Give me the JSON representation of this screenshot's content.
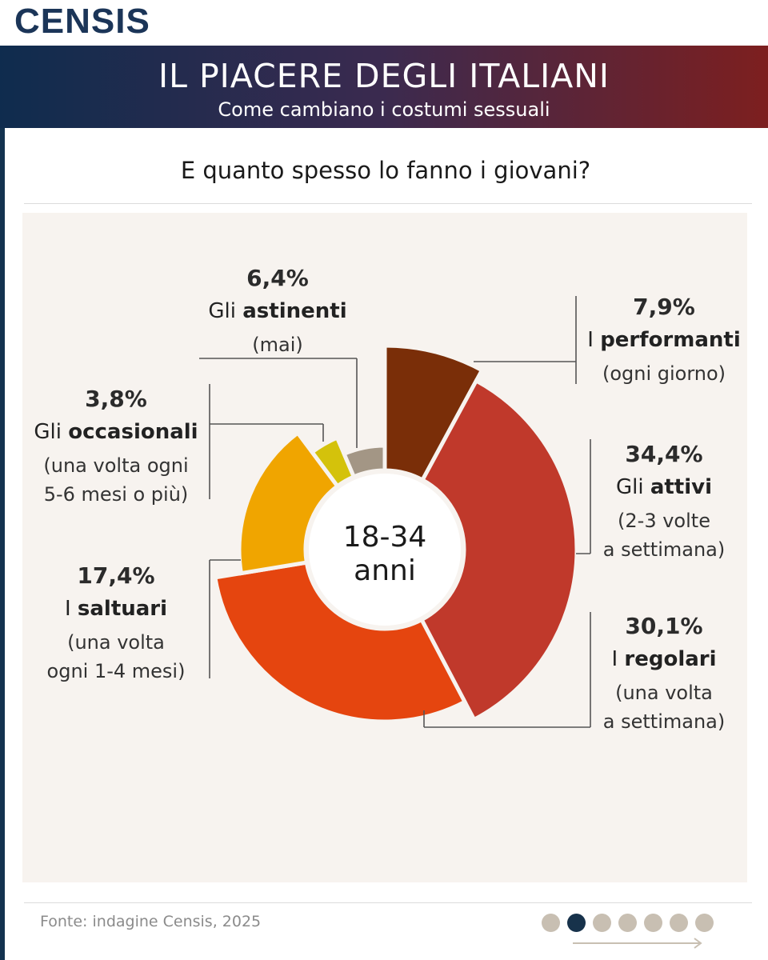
{
  "brand": "CENSIS",
  "header": {
    "title": "IL PIACERE DEGLI ITALIANI",
    "subtitle": "Come cambiano i costumi sessuali"
  },
  "question": "E quanto spesso lo fanno i giovani?",
  "source": "Fonte: indagine Censis, 2025",
  "pagination": {
    "total": 7,
    "active_index": 1
  },
  "colors": {
    "banner_left": "#0f2c4e",
    "banner_right": "#7d1f1f",
    "panel": "#f7f3ef",
    "leader": "#555555"
  },
  "chart_data": {
    "type": "pie",
    "variant": "donut with radius varying by segment",
    "center_label": [
      "18-34",
      "anni"
    ],
    "segments": [
      {
        "value": 7.9,
        "label": "7,9%",
        "prefix": "I ",
        "bold": "performanti",
        "desc": [
          "(ogni giorno)"
        ],
        "color": "#7a2e08"
      },
      {
        "value": 34.4,
        "label": "34,4%",
        "prefix": "Gli ",
        "bold": "attivi",
        "desc": [
          "(2-3 volte",
          "a settimana)"
        ],
        "color": "#c0392b"
      },
      {
        "value": 30.1,
        "label": "30,1%",
        "prefix": "I ",
        "bold": "regolari",
        "desc": [
          "(una volta",
          "a settimana)"
        ],
        "color": "#e5450f"
      },
      {
        "value": 17.4,
        "label": "17,4%",
        "prefix": "I ",
        "bold": "saltuari",
        "desc": [
          "(una volta",
          "ogni 1-4 mesi)"
        ],
        "color": "#f0a500"
      },
      {
        "value": 3.8,
        "label": "3,8%",
        "prefix": "Gli ",
        "bold": "occasionali",
        "desc": [
          "(una volta ogni",
          "5-6 mesi o più)"
        ],
        "color": "#d4c20b"
      },
      {
        "value": 6.4,
        "label": "6,4%",
        "prefix": "Gli ",
        "bold": "astinenti",
        "desc": [
          "(mai)"
        ],
        "color": "#a39685"
      }
    ]
  }
}
